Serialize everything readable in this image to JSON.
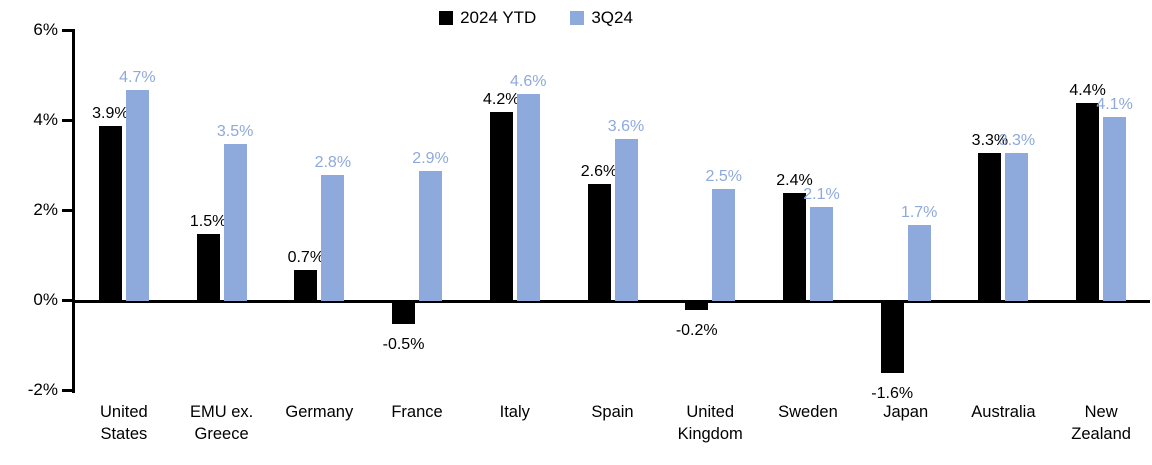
{
  "chart_data": {
    "type": "bar",
    "title": "",
    "xlabel": "",
    "ylabel": "",
    "grid": false,
    "legend_position": "top-center",
    "categories": [
      "United States",
      "EMU ex. Greece",
      "Germany",
      "France",
      "Italy",
      "Spain",
      "United Kingdom",
      "Sweden",
      "Japan",
      "Australia",
      "New Zealand"
    ],
    "series": [
      {
        "name": "2024 YTD",
        "color": "#000000",
        "values": [
          3.9,
          1.5,
          0.7,
          -0.5,
          4.2,
          2.6,
          -0.2,
          2.4,
          -1.6,
          3.3,
          4.4
        ],
        "labels": [
          "3.9%",
          "1.5%",
          "0.7%",
          "-0.5%",
          "4.2%",
          "2.6%",
          "-0.2%",
          "2.4%",
          "-1.6%",
          "3.3%",
          "4.4%"
        ]
      },
      {
        "name": "3Q24",
        "color": "#8EA9DB",
        "values": [
          4.7,
          3.5,
          2.8,
          2.9,
          4.6,
          3.6,
          2.5,
          2.1,
          1.7,
          3.3,
          4.1
        ],
        "labels": [
          "4.7%",
          "3.5%",
          "2.8%",
          "2.9%",
          "4.6%",
          "3.6%",
          "2.5%",
          "2.1%",
          "1.7%",
          "3.3%",
          "4.1%"
        ]
      }
    ],
    "y_axis": {
      "min": -2,
      "max": 6,
      "tick_values": [
        6,
        4,
        2,
        0,
        -2
      ],
      "tick_labels": [
        "6%",
        "4%",
        "2%",
        "0%",
        "-2%"
      ]
    },
    "colors": {
      "axis": "#000000",
      "background": "#FFFFFF"
    }
  }
}
